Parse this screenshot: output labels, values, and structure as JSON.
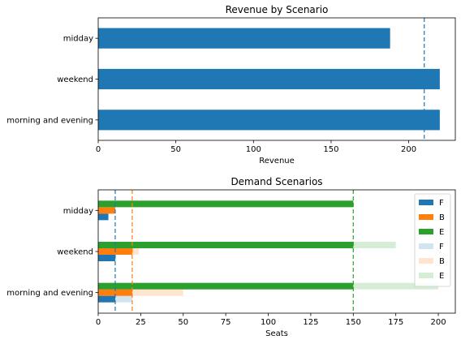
{
  "chart_data": [
    {
      "type": "bar",
      "orientation": "horizontal",
      "title": "Revenue by Scenario",
      "xlabel": "Revenue",
      "ylabel": "",
      "xlim": [
        0,
        230
      ],
      "xticks": [
        0,
        50,
        100,
        150,
        200
      ],
      "categories": [
        "morning and evening",
        "weekend",
        "midday"
      ],
      "values": [
        220,
        220,
        188
      ],
      "bar_color": "#1f77b4",
      "reference_lines": [
        {
          "x": 210,
          "style": "dashed",
          "color": "#1f77b4"
        }
      ]
    },
    {
      "type": "bar",
      "orientation": "horizontal",
      "title": "Demand Scenarios",
      "xlabel": "Seats",
      "ylabel": "",
      "xlim": [
        0,
        210
      ],
      "xticks": [
        0,
        25,
        50,
        75,
        100,
        125,
        150,
        175,
        200
      ],
      "categories": [
        "morning and evening",
        "weekend",
        "midday"
      ],
      "legend_position": "top-right",
      "series": [
        {
          "name": "F",
          "color": "#1f77b4",
          "alpha": 1.0,
          "values": [
            10,
            10,
            6
          ]
        },
        {
          "name": "B",
          "color": "#ff7f0e",
          "alpha": 1.0,
          "values": [
            20,
            20,
            10
          ]
        },
        {
          "name": "E",
          "color": "#2ca02c",
          "alpha": 1.0,
          "values": [
            150,
            150,
            150
          ]
        },
        {
          "name": "F",
          "color": "#1f77b4",
          "alpha": 0.2,
          "values": [
            20,
            10,
            5
          ]
        },
        {
          "name": "B",
          "color": "#ff7f0e",
          "alpha": 0.2,
          "values": [
            50,
            24,
            10
          ]
        },
        {
          "name": "E",
          "color": "#2ca02c",
          "alpha": 0.2,
          "values": [
            200,
            175,
            150
          ]
        }
      ],
      "reference_lines": [
        {
          "x": 10,
          "style": "dashed",
          "color": "#1f77b4"
        },
        {
          "x": 20,
          "style": "dashed",
          "color": "#ff7f0e"
        },
        {
          "x": 150,
          "style": "dashed",
          "color": "#2ca02c"
        }
      ]
    }
  ]
}
